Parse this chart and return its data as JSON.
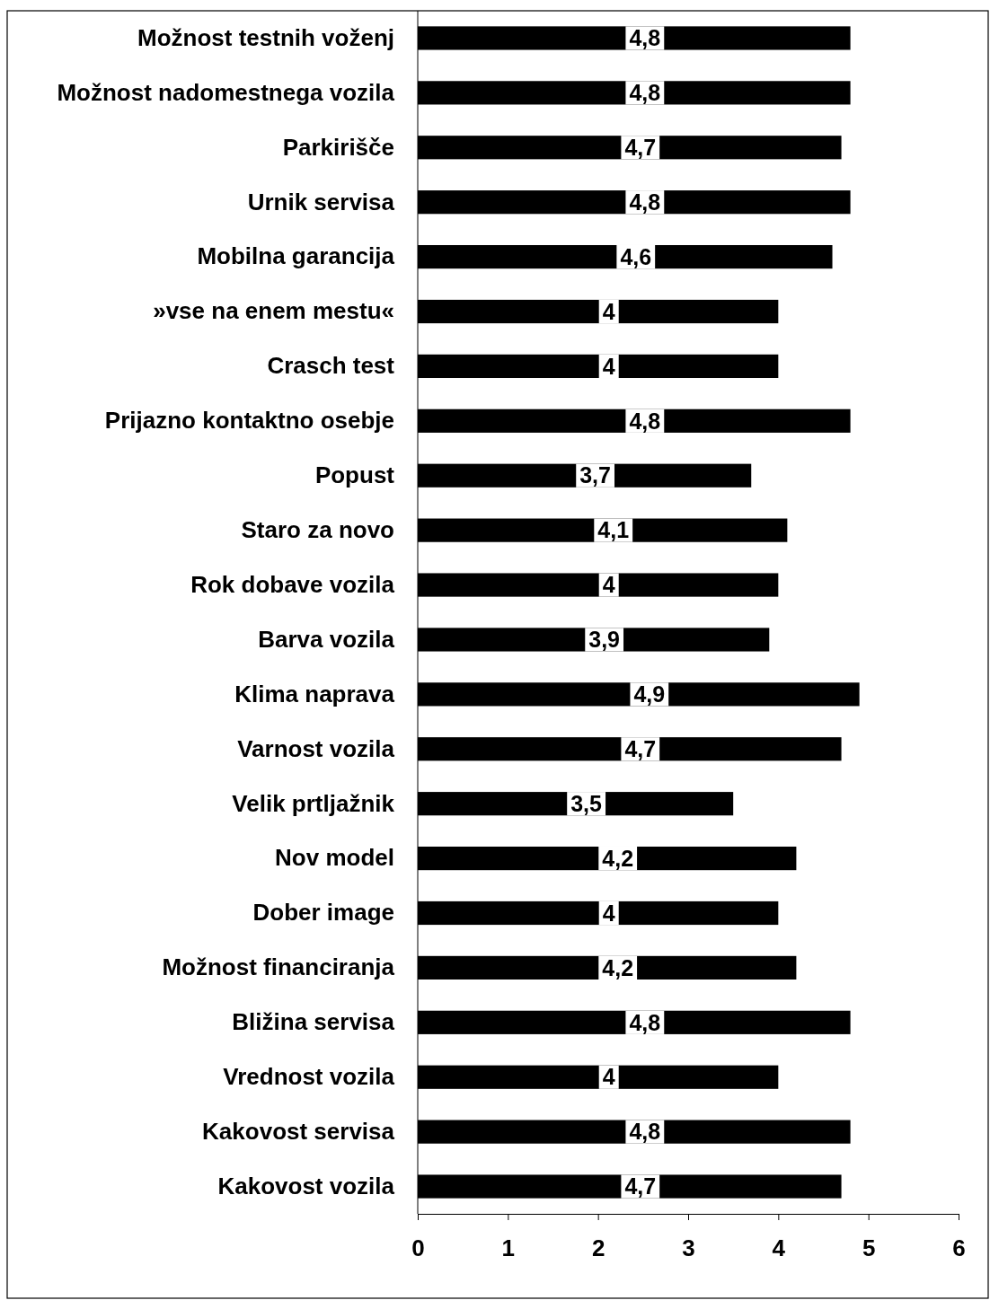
{
  "chart_data": {
    "type": "bar",
    "orientation": "horizontal",
    "categories": [
      "Možnost testnih voženj",
      "Možnost nadomestnega vozila",
      "Parkirišče",
      "Urnik servisa",
      "Mobilna garancija",
      "»vse na enem mestu«",
      "Crasch test",
      "Prijazno kontaktno osebje",
      "Popust",
      "Staro za novo",
      "Rok dobave vozila",
      "Barva vozila",
      "Klima naprava",
      "Varnost vozila",
      "Velik prtljažnik",
      "Nov model",
      "Dober image",
      "Možnost financiranja",
      "Bližina servisa",
      "Vrednost vozila",
      "Kakovost servisa",
      "Kakovost vozila"
    ],
    "values": [
      4.8,
      4.8,
      4.7,
      4.8,
      4.6,
      4,
      4,
      4.8,
      3.7,
      4.1,
      4,
      3.9,
      4.9,
      4.7,
      3.5,
      4.2,
      4,
      4.2,
      4.8,
      4,
      4.8,
      4.7
    ],
    "value_labels": [
      "4,8",
      "4,8",
      "4,7",
      "4,8",
      "4,6",
      "4",
      "4",
      "4,8",
      "3,7",
      "4,1",
      "4",
      "3,9",
      "4,9",
      "4,7",
      "3,5",
      "4,2",
      "4",
      "4,2",
      "4,8",
      "4",
      "4,8",
      "4,7"
    ],
    "color": "#000000",
    "xlim": [
      0,
      6
    ],
    "xticks": [
      0,
      1,
      2,
      3,
      4,
      5,
      6
    ],
    "grid": false
  }
}
